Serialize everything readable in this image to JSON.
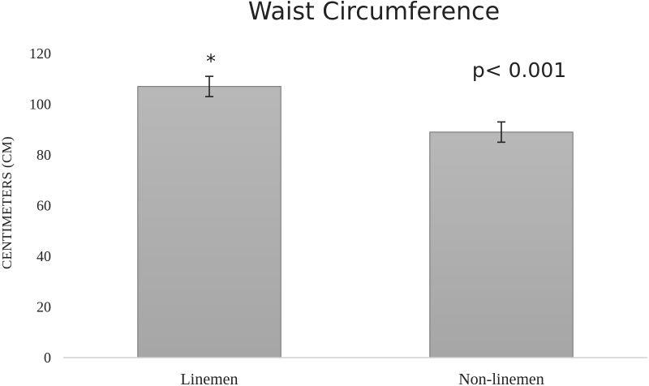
{
  "chart_data": {
    "type": "bar",
    "title": "Waist Circumference",
    "ylabel": "CENTIMETERS (CM)",
    "xlabel": "",
    "categories": [
      "Linemen",
      "Non-linemen"
    ],
    "values": [
      107,
      89
    ],
    "error": [
      4,
      4
    ],
    "ylim": [
      0,
      120
    ],
    "yticks": [
      0,
      20,
      40,
      60,
      80,
      100,
      120
    ],
    "ytick_labels": [
      "0",
      "20",
      "40",
      "60",
      "80",
      "100",
      "120"
    ],
    "grid": false,
    "bar_color": "#b3b3b3",
    "annotations": {
      "star": "*",
      "p_value": "p< 0.001"
    }
  }
}
